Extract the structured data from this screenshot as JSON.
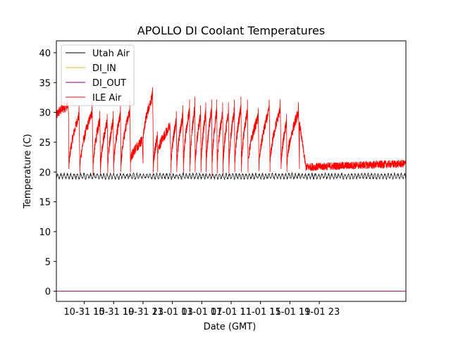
{
  "chart_data": {
    "type": "line",
    "title": "APOLLO DI Coolant Temperatures",
    "xlabel": "Date (GMT)",
    "ylabel": "Temperature (C)",
    "xlim": [
      11.2,
      58.8
    ],
    "ylim": [
      -1.7,
      42.0
    ],
    "x_units": "hours since 10-31 00:00 GMT",
    "x_ticks": [
      {
        "x": 15,
        "label": "10-31 15"
      },
      {
        "x": 19,
        "label": "10-31 19"
      },
      {
        "x": 23,
        "label": "10-31 23"
      },
      {
        "x": 27,
        "label": "11-01 03"
      },
      {
        "x": 31,
        "label": "11-01 07"
      },
      {
        "x": 35,
        "label": "11-01 11"
      },
      {
        "x": 39,
        "label": "11-01 15"
      },
      {
        "x": 43,
        "label": "11-01 19"
      },
      {
        "x": 47,
        "label": "11-01 23"
      }
    ],
    "y_ticks": [
      0,
      5,
      10,
      15,
      20,
      25,
      30,
      35,
      40
    ],
    "legend": {
      "placement": "upper-left"
    },
    "series": [
      {
        "name": "Utah Air",
        "color": "#000000",
        "baseline": 19.3,
        "oscillation_amplitude": 0.4,
        "oscillation_period_hours": 0.45
      },
      {
        "name": "DI_IN",
        "color": "#e6b400",
        "constant_value": 0
      },
      {
        "name": "DI_OUT",
        "color": "#800080",
        "constant_value": 0
      },
      {
        "name": "ILE Air",
        "color": "#ff0000",
        "cycles": [
          {
            "start": 11.2,
            "end": 12.9,
            "low": 29.0,
            "high": 31.5
          },
          {
            "start": 12.9,
            "end": 14.4,
            "low": 20.0,
            "high": 31.5
          },
          {
            "start": 14.4,
            "end": 16.2,
            "low": 20.0,
            "high": 32.0
          },
          {
            "start": 16.2,
            "end": 17.2,
            "low": 20.0,
            "high": 30.5
          },
          {
            "start": 17.2,
            "end": 18.2,
            "low": 20.0,
            "high": 30.0
          },
          {
            "start": 18.2,
            "end": 19.0,
            "low": 20.0,
            "high": 30.5
          },
          {
            "start": 19.0,
            "end": 20.0,
            "low": 20.0,
            "high": 31.5
          },
          {
            "start": 20.0,
            "end": 21.3,
            "low": 20.0,
            "high": 32.5
          },
          {
            "start": 21.3,
            "end": 23.0,
            "low": 21.5,
            "high": 26.0
          },
          {
            "start": 23.0,
            "end": 24.4,
            "low": 24.5,
            "high": 34.5
          },
          {
            "start": 24.4,
            "end": 25.0,
            "low": 20.0,
            "high": 27.0
          },
          {
            "start": 25.0,
            "end": 26.8,
            "low": 22.5,
            "high": 28.5
          },
          {
            "start": 26.8,
            "end": 27.6,
            "low": 20.0,
            "high": 30.5
          },
          {
            "start": 27.6,
            "end": 28.5,
            "low": 20.0,
            "high": 31.5
          },
          {
            "start": 28.5,
            "end": 29.4,
            "low": 20.0,
            "high": 32.5
          },
          {
            "start": 29.4,
            "end": 30.1,
            "low": 20.0,
            "high": 33.0
          },
          {
            "start": 30.1,
            "end": 30.9,
            "low": 20.0,
            "high": 31.5
          },
          {
            "start": 30.9,
            "end": 31.6,
            "low": 20.0,
            "high": 32.0
          },
          {
            "start": 31.6,
            "end": 32.4,
            "low": 20.0,
            "high": 32.5
          },
          {
            "start": 32.4,
            "end": 33.1,
            "low": 20.0,
            "high": 32.5
          },
          {
            "start": 33.1,
            "end": 33.9,
            "low": 20.0,
            "high": 32.0
          },
          {
            "start": 33.9,
            "end": 34.7,
            "low": 20.0,
            "high": 32.0
          },
          {
            "start": 34.7,
            "end": 35.5,
            "low": 20.0,
            "high": 32.5
          },
          {
            "start": 35.5,
            "end": 36.4,
            "low": 20.0,
            "high": 33.0
          },
          {
            "start": 36.4,
            "end": 37.3,
            "low": 20.0,
            "high": 32.5
          },
          {
            "start": 37.3,
            "end": 38.8,
            "low": 20.5,
            "high": 31.0
          },
          {
            "start": 38.8,
            "end": 40.3,
            "low": 20.0,
            "high": 32.5
          },
          {
            "start": 40.3,
            "end": 41.8,
            "low": 20.5,
            "high": 32.5
          },
          {
            "start": 41.8,
            "end": 42.6,
            "low": 20.0,
            "high": 30.0
          },
          {
            "start": 42.6,
            "end": 44.3,
            "low": 20.5,
            "high": 32.0
          },
          {
            "start": 44.3,
            "end": 58.8,
            "low": 20.8,
            "high": 22.3,
            "settled": true
          }
        ]
      }
    ]
  }
}
